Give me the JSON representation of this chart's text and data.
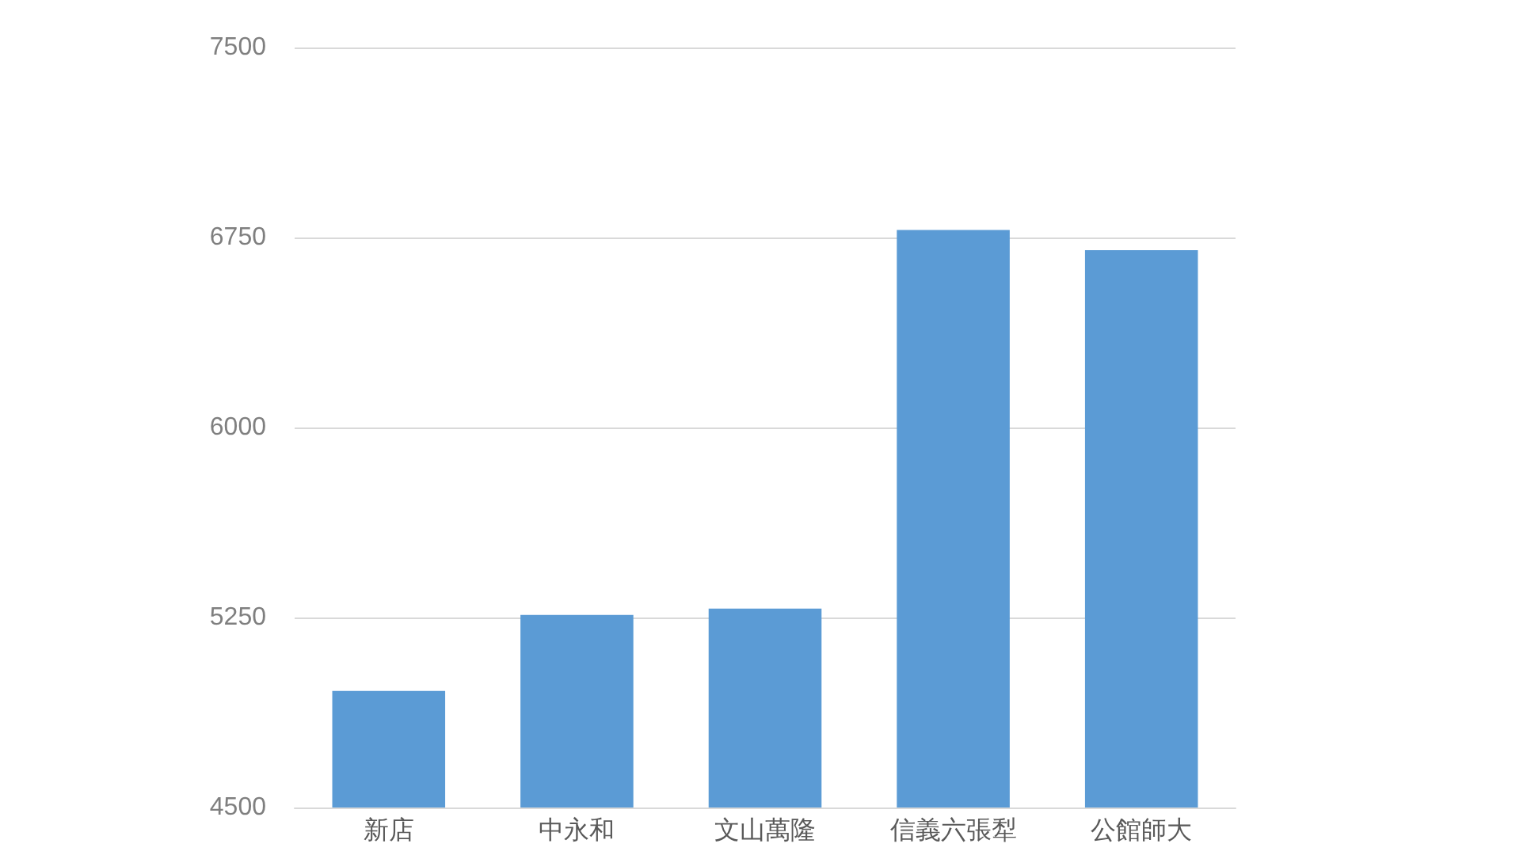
{
  "chart_data": {
    "type": "bar",
    "categories": [
      "新店",
      "中永和",
      "文山萬隆",
      "信義六張犁",
      "公館師大"
    ],
    "values": [
      4960,
      5260,
      5285,
      6780,
      6700
    ],
    "color": "#5b9bd5",
    "ylim": [
      4500,
      7500
    ],
    "yticks": [
      4500,
      5250,
      6000,
      6750,
      7500
    ],
    "grid": "y"
  }
}
